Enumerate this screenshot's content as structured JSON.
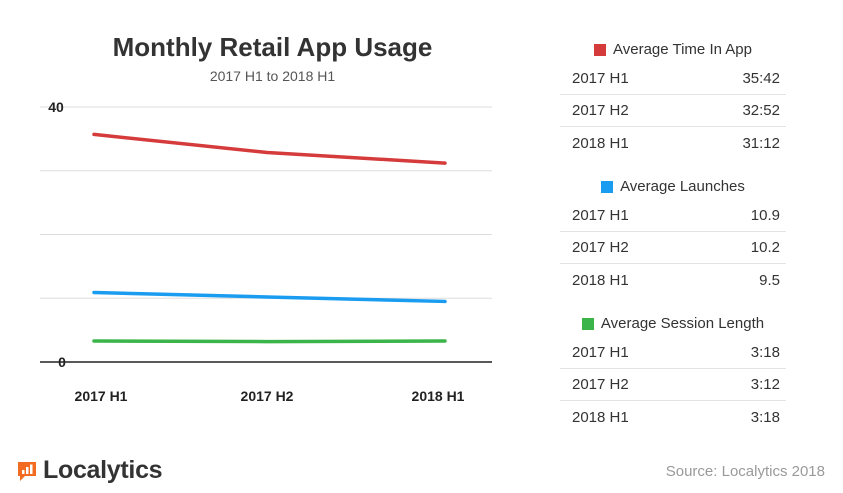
{
  "chart_data": {
    "type": "line",
    "title": "Monthly Retail App Usage",
    "subtitle": "2017 H1 to 2018 H1",
    "categories": [
      "2017 H1",
      "2017 H2",
      "2018 H1"
    ],
    "y_ticks": [
      "40",
      "0"
    ],
    "ylim": [
      0,
      40
    ],
    "grid": true,
    "series": [
      {
        "name": "Average Time In App",
        "color": "#d63b3b",
        "values": [
          35.7,
          32.87,
          31.2
        ]
      },
      {
        "name": "Average Launches",
        "color": "#1a9cf0",
        "values": [
          10.9,
          10.2,
          9.5
        ]
      },
      {
        "name": "Average Session Length",
        "color": "#3bb54a",
        "values": [
          3.3,
          3.2,
          3.3
        ]
      }
    ]
  },
  "table": {
    "groups": [
      {
        "name": "Average Time In App",
        "color": "#d63b3b",
        "rows": [
          {
            "label": "2017 H1",
            "value": "35:42"
          },
          {
            "label": "2017 H2",
            "value": "32:52"
          },
          {
            "label": "2018 H1",
            "value": "31:12"
          }
        ]
      },
      {
        "name": "Average Launches",
        "color": "#1a9cf0",
        "rows": [
          {
            "label": "2017 H1",
            "value": "10.9"
          },
          {
            "label": "2017 H2",
            "value": "10.2"
          },
          {
            "label": "2018 H1",
            "value": "9.5"
          }
        ]
      },
      {
        "name": "Average Session Length",
        "color": "#3bb54a",
        "rows": [
          {
            "label": "2017 H1",
            "value": "3:18"
          },
          {
            "label": "2017 H2",
            "value": "3:12"
          },
          {
            "label": "2018 H1",
            "value": "3:18"
          }
        ]
      }
    ]
  },
  "branding": {
    "logo_text": "Localytics",
    "logo_icon": "localytics-logo-icon",
    "accent": "#f26b21"
  },
  "source": "Source: Localytics 2018"
}
